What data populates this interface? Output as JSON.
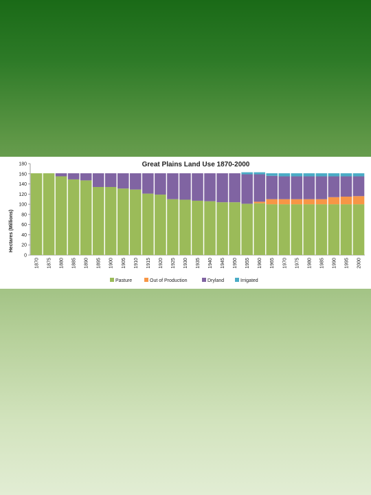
{
  "chart_data": {
    "type": "bar",
    "stacked": true,
    "title": "Great Plains Land Use 1870-2000",
    "ylabel": "Hectares (Millions)",
    "xlabel": "",
    "ylim": [
      0,
      180
    ],
    "yticks": [
      0,
      20,
      40,
      60,
      80,
      100,
      120,
      140,
      160,
      180
    ],
    "grid": false,
    "legend_position": "bottom",
    "categories": [
      "1870",
      "1875",
      "1880",
      "1885",
      "1890",
      "1895",
      "1900",
      "1905",
      "1910",
      "1915",
      "1920",
      "1925",
      "1930",
      "1935",
      "1940",
      "1945",
      "1950",
      "1955",
      "1960",
      "1965",
      "1970",
      "1975",
      "1980",
      "1985",
      "1990",
      "1995",
      "2000"
    ],
    "series": [
      {
        "name": "Pasture",
        "color": "#9bbb59",
        "values": [
          161,
          161,
          155,
          149,
          147,
          134,
          134,
          131,
          129,
          121,
          119,
          110,
          109,
          107,
          106,
          104,
          104,
          101,
          102,
          100,
          100,
          100,
          100,
          100,
          100,
          100,
          100
        ]
      },
      {
        "name": "Out of Production",
        "color": "#f79646",
        "values": [
          0,
          0,
          0,
          0,
          0,
          0,
          0,
          0,
          0,
          0,
          0,
          0,
          0,
          0,
          0,
          0,
          0,
          0,
          3,
          10,
          10,
          10,
          10,
          10,
          14,
          15,
          16
        ]
      },
      {
        "name": "Dryland",
        "color": "#8064a2",
        "values": [
          0,
          0,
          6,
          12,
          14,
          27,
          27,
          30,
          32,
          40,
          42,
          51,
          52,
          54,
          55,
          57,
          57,
          58,
          54,
          46,
          45,
          45,
          45,
          45,
          41,
          40,
          39
        ]
      },
      {
        "name": "Irrigated",
        "color": "#4bacc6",
        "values": [
          0,
          0,
          0,
          0,
          0,
          0,
          0,
          0,
          0,
          0,
          0,
          0,
          0,
          0,
          0,
          0,
          0,
          4,
          4,
          5,
          6,
          6,
          6,
          6,
          6,
          6,
          6
        ]
      }
    ]
  }
}
